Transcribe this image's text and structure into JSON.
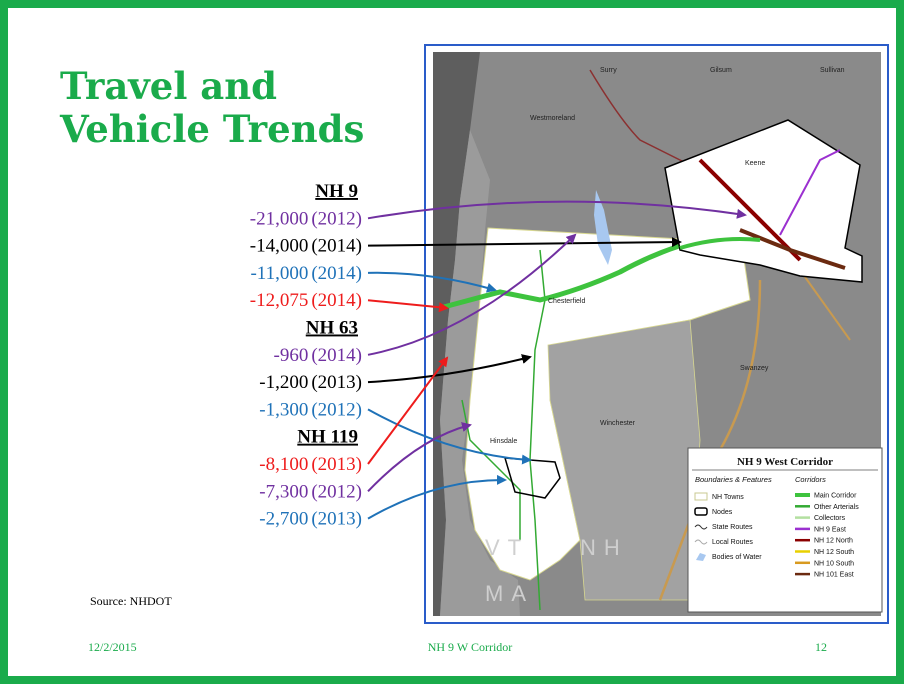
{
  "title": [
    "Travel and",
    "Vehicle Trends"
  ],
  "sections": [
    {
      "heading": "NH 9",
      "items": [
        {
          "value": "-21,000",
          "year": "(2012)",
          "color": "#7030a0"
        },
        {
          "value": "-14,000",
          "year": "(2014)",
          "color": "#000000"
        },
        {
          "value": "-11,000",
          "year": "(2014)",
          "color": "#1f72b8"
        },
        {
          "value": "-12,075",
          "year": "(2014)",
          "color": "#ee1c1c"
        }
      ]
    },
    {
      "heading": "NH 63",
      "items": [
        {
          "value": "-960",
          "year": "(2014)",
          "color": "#7030a0"
        },
        {
          "value": "-1,200",
          "year": "(2013)",
          "color": "#000000"
        },
        {
          "value": "-1,300",
          "year": "(2012)",
          "color": "#1f72b8"
        }
      ]
    },
    {
      "heading": "NH 119",
      "items": [
        {
          "value": "-8,100",
          "year": "(2013)",
          "color": "#ee1c1c"
        },
        {
          "value": "-7,300",
          "year": "(2012)",
          "color": "#7030a0"
        },
        {
          "value": "-2,700",
          "year": "(2013)",
          "color": "#1f72b8"
        }
      ]
    }
  ],
  "source": "Source:  NHDOT",
  "footer": {
    "date": "12/2/2015",
    "center": "NH 9 W Corridor",
    "page": "12"
  },
  "map": {
    "regions": [
      "VT",
      "NH",
      "MA"
    ],
    "towns": [
      "Westmoreland",
      "Keene",
      "Chesterfield",
      "Hinsdale",
      "Winchester",
      "Swanzey",
      "Surry",
      "Gilsum",
      "Sullivan"
    ],
    "legend": {
      "title": "NH 9 West Corridor",
      "left_heading": "Boundaries & Features",
      "right_heading": "Corridors",
      "left": [
        "NH Towns",
        "Nodes",
        "State Routes",
        "Local Routes",
        "Bodies of Water"
      ],
      "right": [
        {
          "name": "Main Corridor",
          "color": "#3ec33e"
        },
        {
          "name": "Other Arterials",
          "color": "#33aa33"
        },
        {
          "name": "Collectors",
          "color": "#b3e0a0"
        },
        {
          "name": "NH 9 East",
          "color": "#9b30d0"
        },
        {
          "name": "NH 12 North",
          "color": "#8b0000"
        },
        {
          "name": "NH 12 South",
          "color": "#e8d000"
        },
        {
          "name": "NH 10 South",
          "color": "#d89a20"
        },
        {
          "name": "NH 101 East",
          "color": "#6b2a10"
        }
      ]
    }
  }
}
